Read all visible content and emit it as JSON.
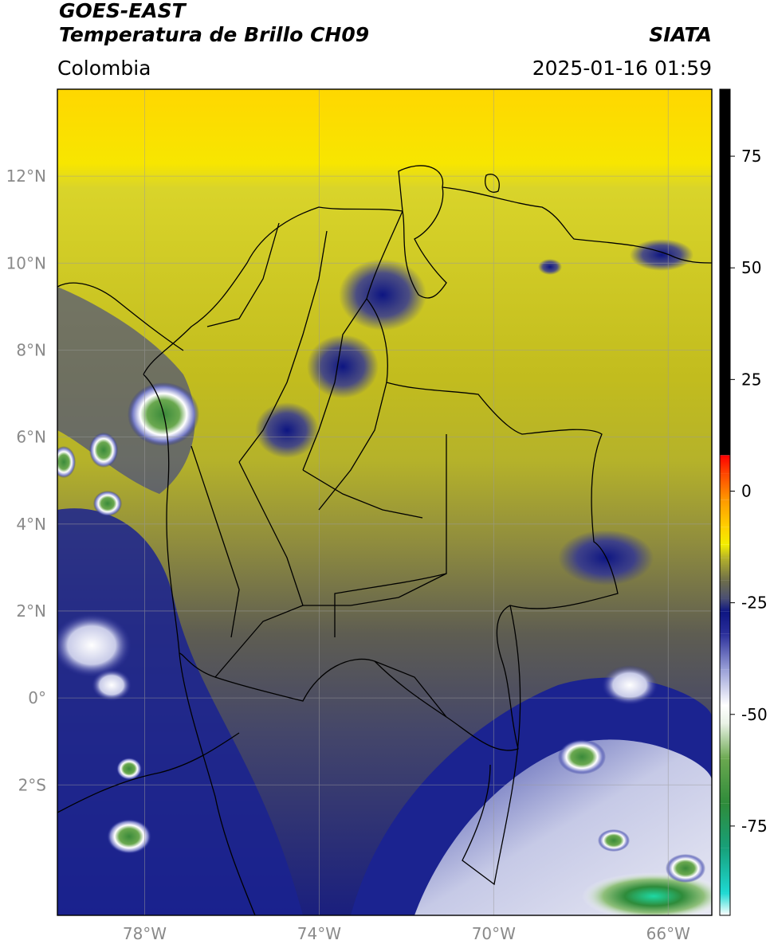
{
  "header": {
    "satellite": "GOES-EAST",
    "product": "Temperatura de Brillo CH09",
    "organization": "SIATA",
    "region": "Colombia",
    "timestamp": "2025-01-16 01:59"
  },
  "map": {
    "lon_range": [
      -80.0,
      -65.0
    ],
    "lat_range": [
      -5.0,
      14.0
    ],
    "lat_ticks": [
      {
        "value": 12,
        "label": "12°N"
      },
      {
        "value": 10,
        "label": "10°N"
      },
      {
        "value": 8,
        "label": "8°N"
      },
      {
        "value": 6,
        "label": "6°N"
      },
      {
        "value": 4,
        "label": "4°N"
      },
      {
        "value": 2,
        "label": "2°N"
      },
      {
        "value": 0,
        "label": "0°"
      },
      {
        "value": -2,
        "label": "2°S"
      }
    ],
    "lon_ticks": [
      {
        "value": -78,
        "label": "78°W"
      },
      {
        "value": -74,
        "label": "74°W"
      },
      {
        "value": -70,
        "label": "70°W"
      },
      {
        "value": -66,
        "label": "66°W"
      }
    ],
    "gridlines": true
  },
  "colorbar": {
    "range": [
      -95,
      90
    ],
    "ticks": [
      {
        "value": 75,
        "label": "75"
      },
      {
        "value": 50,
        "label": "50"
      },
      {
        "value": 25,
        "label": "25"
      },
      {
        "value": 0,
        "label": "0"
      },
      {
        "value": -25,
        "label": "-25"
      },
      {
        "value": -50,
        "label": "-50"
      },
      {
        "value": -75,
        "label": "-75"
      }
    ],
    "stops": [
      {
        "value": -95,
        "color": "#ffffff"
      },
      {
        "value": -90,
        "color": "#1ed9d2"
      },
      {
        "value": -80,
        "color": "#17a07a"
      },
      {
        "value": -70,
        "color": "#2e8b3a"
      },
      {
        "value": -60,
        "color": "#6aa84f"
      },
      {
        "value": -52,
        "color": "#e9f2e6"
      },
      {
        "value": -48,
        "color": "#ffffff"
      },
      {
        "value": -40,
        "color": "#9aa0d8"
      },
      {
        "value": -32,
        "color": "#2b2f9a"
      },
      {
        "value": -27,
        "color": "#0d1582"
      },
      {
        "value": -24,
        "color": "#4b4f72"
      },
      {
        "value": -20,
        "color": "#6e6e4a"
      },
      {
        "value": -15,
        "color": "#b5b22a"
      },
      {
        "value": -12,
        "color": "#f3ee00"
      },
      {
        "value": -8,
        "color": "#ffd000"
      },
      {
        "value": -2,
        "color": "#ff9900"
      },
      {
        "value": 4,
        "color": "#ff4500"
      },
      {
        "value": 8,
        "color": "#ff0000"
      },
      {
        "value": 8.1,
        "color": "#000000"
      },
      {
        "value": 90,
        "color": "#000000"
      }
    ]
  }
}
